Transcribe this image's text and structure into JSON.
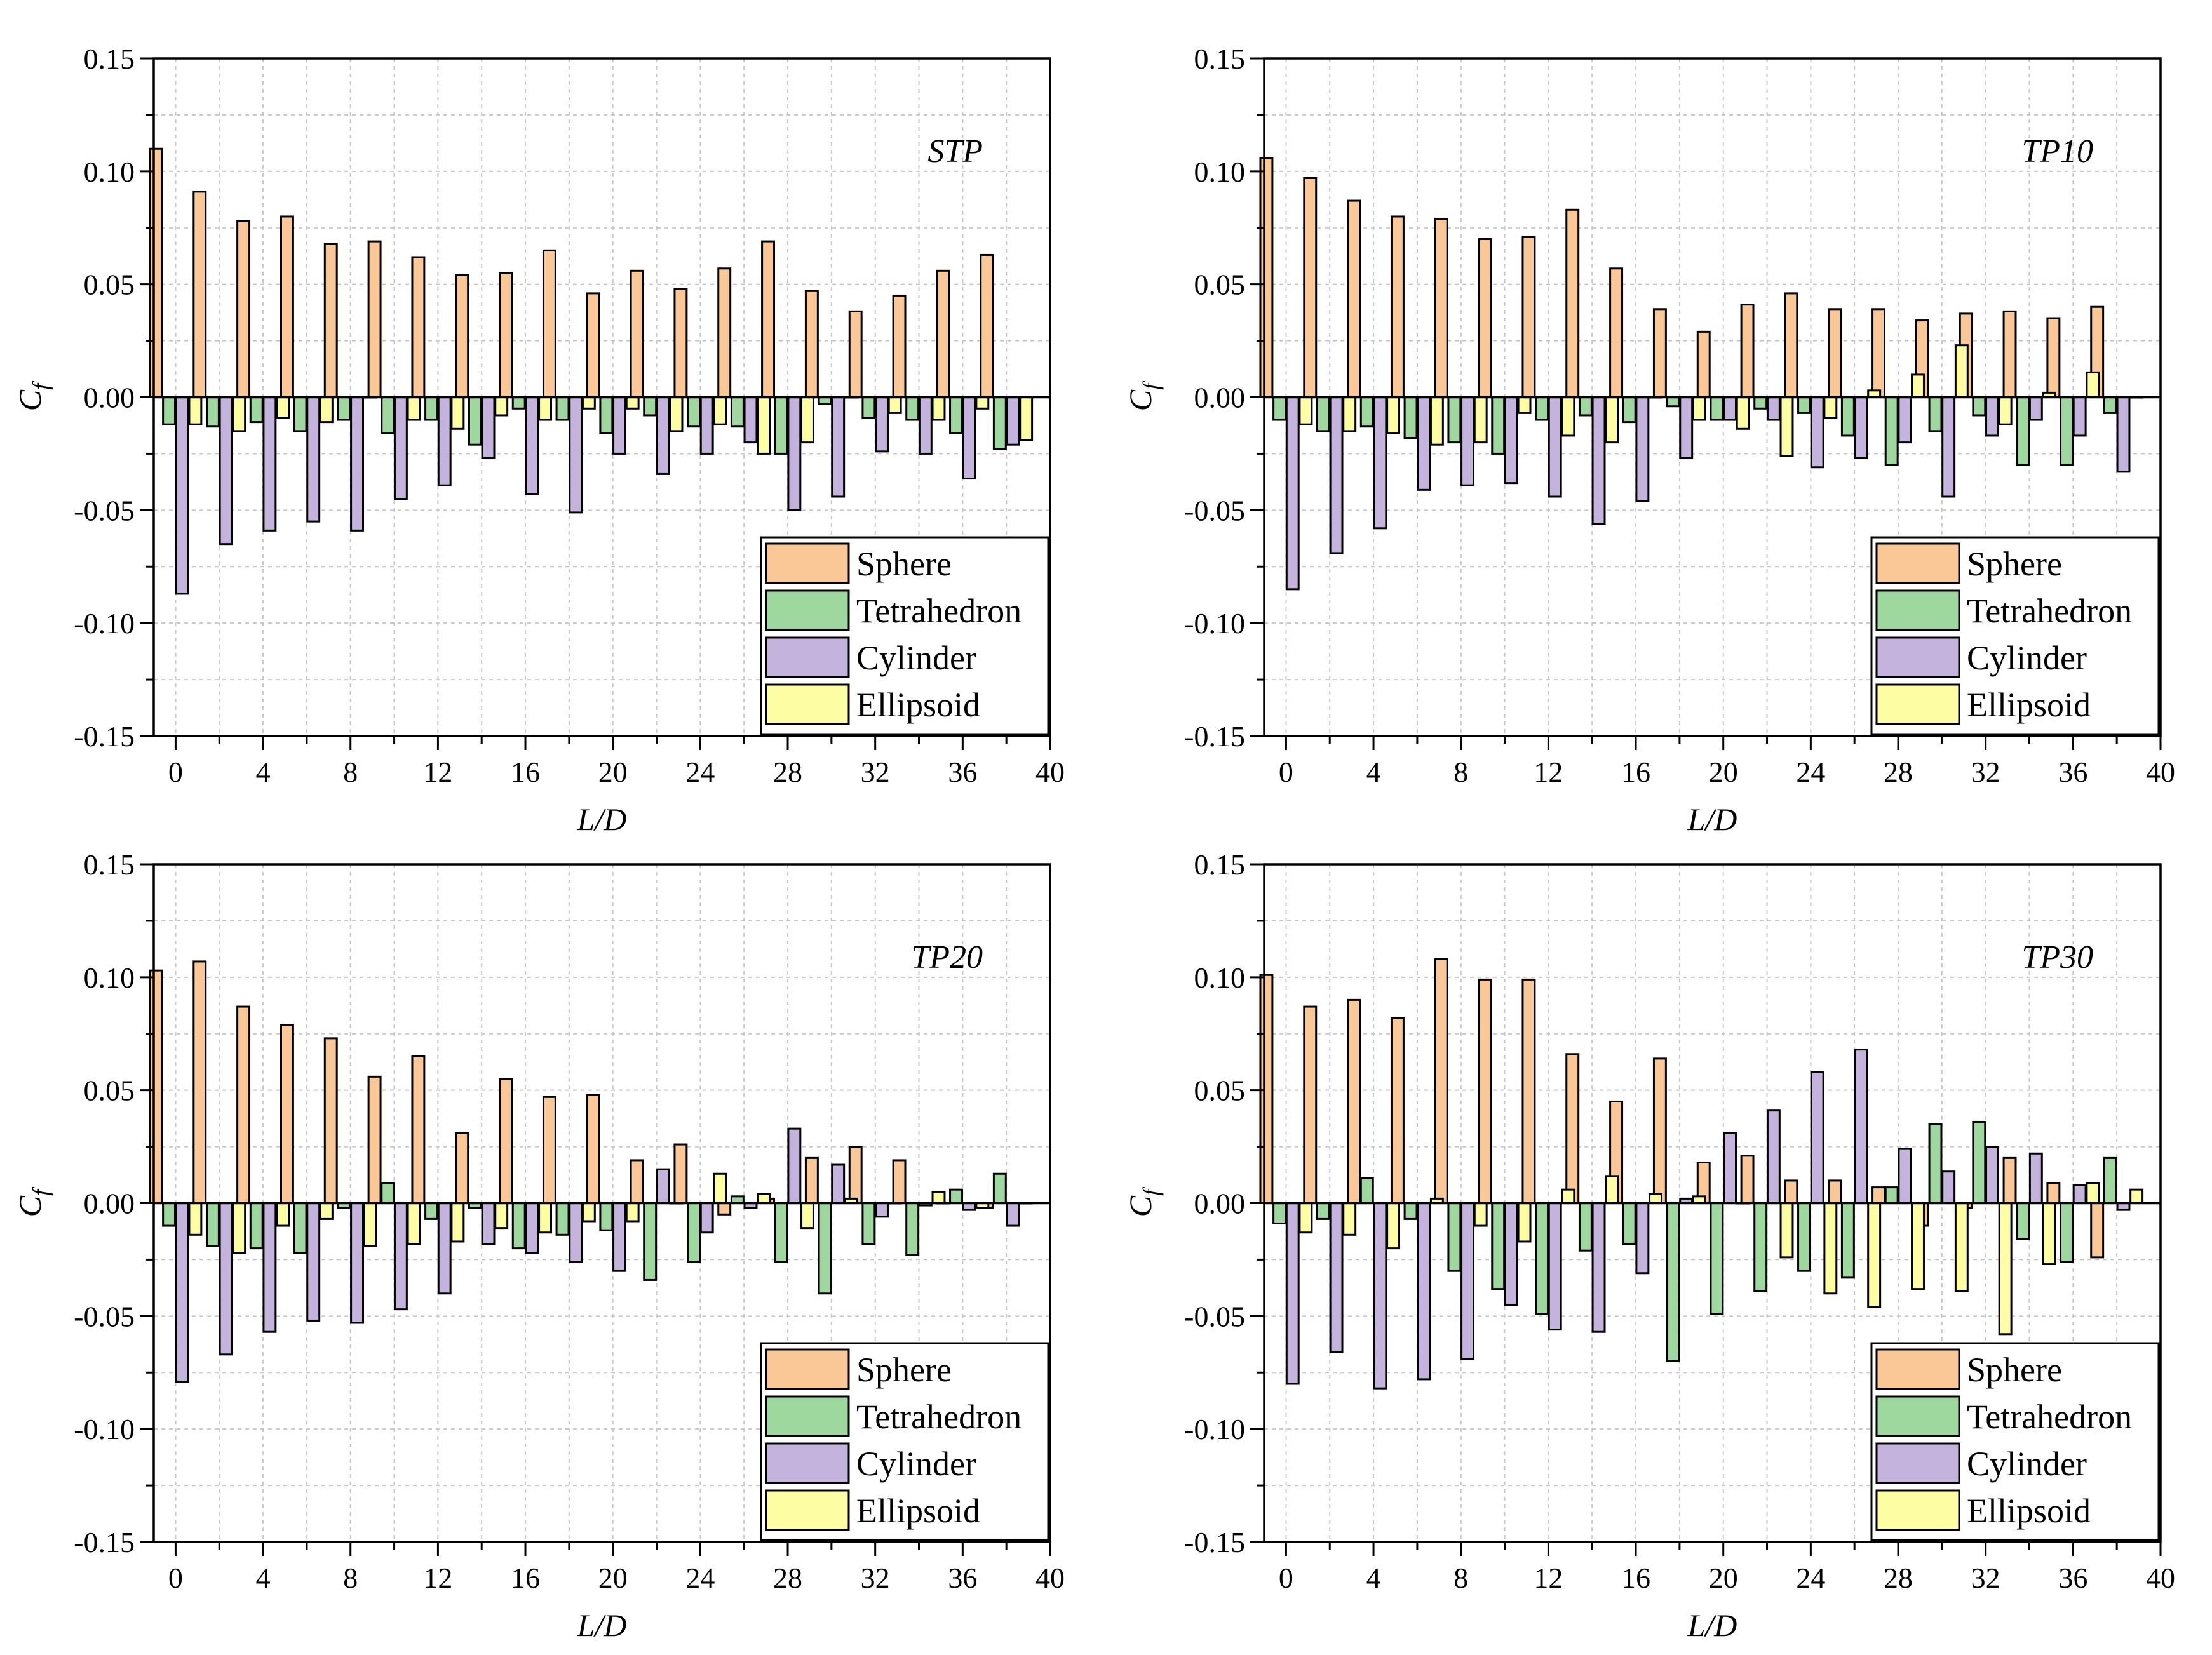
{
  "figure": {
    "colors": {
      "Sphere": "#FAC896",
      "Tetrahedron": "#9ED89E",
      "Cylinder": "#C4B3DC",
      "Ellipsoid": "#FDFDA4",
      "grid": "#c8c8c8"
    },
    "xlabel": "L/D",
    "ylabel": "Cf",
    "ylabel_main": "C",
    "ylabel_sub": "f",
    "yticks": [
      "-0.15",
      "-0.10",
      "-0.05",
      "0.00",
      "0.05",
      "0.10",
      "0.15"
    ],
    "xticks": [
      "0",
      "4",
      "8",
      "12",
      "16",
      "20",
      "24",
      "28",
      "32",
      "36",
      "40"
    ],
    "legend": [
      "Sphere",
      "Tetrahedron",
      "Cylinder",
      "Ellipsoid"
    ]
  },
  "chart_data": [
    {
      "type": "bar",
      "title": "STP",
      "xlabel": "L/D",
      "ylabel": "Cf",
      "x": [
        0,
        2,
        4,
        6,
        8,
        10,
        12,
        14,
        16,
        18,
        20,
        22,
        24,
        26,
        28,
        30,
        32,
        34,
        36,
        38
      ],
      "xlim": [
        -1,
        40
      ],
      "ylim": [
        -0.15,
        0.15
      ],
      "grid": true,
      "legend_position": "bottom-right",
      "series": [
        {
          "name": "Sphere",
          "values": [
            0.11,
            0.091,
            0.078,
            0.08,
            0.068,
            0.069,
            0.062,
            0.054,
            0.055,
            0.065,
            0.046,
            0.056,
            0.048,
            0.057,
            0.069,
            0.047,
            0.038,
            0.045,
            0.056,
            0.063
          ]
        },
        {
          "name": "Tetrahedron",
          "values": [
            -0.012,
            -0.013,
            -0.011,
            -0.015,
            -0.01,
            -0.016,
            -0.01,
            -0.021,
            -0.005,
            -0.01,
            -0.016,
            -0.008,
            -0.013,
            -0.013,
            -0.025,
            -0.003,
            -0.009,
            -0.01,
            -0.016,
            -0.023
          ]
        },
        {
          "name": "Cylinder",
          "values": [
            -0.087,
            -0.065,
            -0.059,
            -0.055,
            -0.059,
            -0.045,
            -0.039,
            -0.027,
            -0.043,
            -0.051,
            -0.025,
            -0.034,
            -0.025,
            -0.02,
            -0.05,
            -0.044,
            -0.024,
            -0.025,
            -0.036,
            -0.021
          ]
        },
        {
          "name": "Ellipsoid",
          "values": [
            -0.012,
            -0.015,
            -0.009,
            -0.011,
            0.0,
            -0.01,
            -0.014,
            -0.008,
            -0.01,
            -0.005,
            -0.005,
            -0.015,
            -0.012,
            -0.025,
            -0.02,
            0.0,
            -0.007,
            -0.01,
            -0.005,
            -0.019
          ]
        }
      ]
    },
    {
      "type": "bar",
      "title": "TP10",
      "xlabel": "L/D",
      "ylabel": "Cf",
      "x": [
        0,
        2,
        4,
        6,
        8,
        10,
        12,
        14,
        16,
        18,
        20,
        22,
        24,
        26,
        28,
        30,
        32,
        34,
        36,
        38
      ],
      "xlim": [
        -1,
        40
      ],
      "ylim": [
        -0.15,
        0.15
      ],
      "grid": true,
      "legend_position": "bottom-right",
      "series": [
        {
          "name": "Sphere",
          "values": [
            0.106,
            0.097,
            0.087,
            0.08,
            0.079,
            0.07,
            0.071,
            0.083,
            0.057,
            0.039,
            0.029,
            0.041,
            0.046,
            0.039,
            0.039,
            0.034,
            0.037,
            0.038,
            0.035,
            0.04
          ]
        },
        {
          "name": "Tetrahedron",
          "values": [
            -0.01,
            -0.015,
            -0.013,
            -0.018,
            -0.02,
            -0.025,
            -0.01,
            -0.008,
            -0.011,
            -0.004,
            -0.01,
            -0.005,
            -0.007,
            -0.017,
            -0.03,
            -0.015,
            -0.008,
            -0.03,
            -0.03,
            -0.007
          ]
        },
        {
          "name": "Cylinder",
          "values": [
            -0.085,
            -0.069,
            -0.058,
            -0.041,
            -0.039,
            -0.038,
            -0.044,
            -0.056,
            -0.046,
            -0.027,
            -0.01,
            -0.01,
            -0.031,
            -0.027,
            -0.02,
            -0.044,
            -0.017,
            -0.01,
            -0.017,
            -0.033
          ]
        },
        {
          "name": "Ellipsoid",
          "values": [
            -0.012,
            -0.015,
            -0.016,
            -0.021,
            -0.02,
            -0.007,
            -0.017,
            -0.02,
            0.0,
            -0.01,
            -0.014,
            -0.026,
            -0.009,
            0.003,
            0.01,
            0.023,
            -0.012,
            0.002,
            0.011,
            0.0
          ]
        }
      ]
    },
    {
      "type": "bar",
      "title": "TP20",
      "xlabel": "L/D",
      "ylabel": "Cf",
      "x": [
        0,
        2,
        4,
        6,
        8,
        10,
        12,
        14,
        16,
        18,
        20,
        22,
        24,
        26,
        28,
        30,
        32,
        34,
        36,
        38
      ],
      "xlim": [
        -1,
        40
      ],
      "ylim": [
        -0.15,
        0.15
      ],
      "grid": true,
      "legend_position": "bottom-right",
      "series": [
        {
          "name": "Sphere",
          "values": [
            0.103,
            0.107,
            0.087,
            0.079,
            0.073,
            0.056,
            0.065,
            0.031,
            0.055,
            0.047,
            0.048,
            0.019,
            0.026,
            -0.005,
            0.002,
            0.02,
            0.025,
            0.019,
            0.0,
            -0.002
          ]
        },
        {
          "name": "Tetrahedron",
          "values": [
            -0.01,
            -0.019,
            -0.02,
            -0.022,
            -0.002,
            0.009,
            -0.007,
            -0.002,
            -0.02,
            -0.014,
            -0.012,
            -0.034,
            -0.026,
            0.003,
            -0.026,
            -0.04,
            -0.018,
            -0.023,
            0.006,
            0.013
          ]
        },
        {
          "name": "Cylinder",
          "values": [
            -0.079,
            -0.067,
            -0.057,
            -0.052,
            -0.053,
            -0.047,
            -0.04,
            -0.018,
            -0.022,
            -0.026,
            -0.03,
            0.015,
            -0.013,
            -0.002,
            0.033,
            0.017,
            -0.006,
            -0.001,
            -0.003,
            -0.01
          ]
        },
        {
          "name": "Ellipsoid",
          "values": [
            -0.014,
            -0.022,
            -0.01,
            -0.007,
            -0.019,
            -0.018,
            -0.017,
            -0.011,
            -0.013,
            -0.008,
            -0.008,
            0.0,
            0.013,
            0.004,
            -0.011,
            0.002,
            0.0,
            0.005,
            -0.002,
            0.0
          ]
        }
      ]
    },
    {
      "type": "bar",
      "title": "TP30",
      "xlabel": "L/D",
      "ylabel": "Cf",
      "x": [
        0,
        2,
        4,
        6,
        8,
        10,
        12,
        14,
        16,
        18,
        20,
        22,
        24,
        26,
        28,
        30,
        32,
        34,
        36,
        38
      ],
      "xlim": [
        -1,
        40
      ],
      "ylim": [
        -0.15,
        0.15
      ],
      "grid": true,
      "legend_position": "bottom-right",
      "series": [
        {
          "name": "Sphere",
          "values": [
            0.101,
            0.087,
            0.09,
            0.082,
            0.108,
            0.099,
            0.099,
            0.066,
            0.045,
            0.064,
            0.018,
            0.021,
            0.01,
            0.01,
            0.007,
            -0.01,
            -0.002,
            0.02,
            0.009,
            -0.024
          ]
        },
        {
          "name": "Tetrahedron",
          "values": [
            -0.009,
            -0.007,
            0.011,
            -0.007,
            -0.03,
            -0.038,
            -0.049,
            -0.021,
            -0.018,
            -0.07,
            -0.049,
            -0.039,
            -0.03,
            -0.033,
            0.007,
            0.035,
            0.036,
            -0.016,
            -0.026,
            0.02
          ]
        },
        {
          "name": "Cylinder",
          "values": [
            -0.08,
            -0.066,
            -0.082,
            -0.078,
            -0.069,
            -0.045,
            -0.056,
            -0.057,
            -0.031,
            0.002,
            0.031,
            0.041,
            0.058,
            0.068,
            0.024,
            0.014,
            0.025,
            0.022,
            0.008,
            -0.003
          ]
        },
        {
          "name": "Ellipsoid",
          "values": [
            -0.013,
            -0.014,
            -0.02,
            0.002,
            -0.01,
            -0.017,
            0.006,
            0.012,
            0.004,
            0.003,
            0.0,
            -0.024,
            -0.04,
            -0.046,
            -0.038,
            -0.039,
            -0.058,
            -0.027,
            0.009,
            0.006
          ]
        }
      ]
    }
  ]
}
